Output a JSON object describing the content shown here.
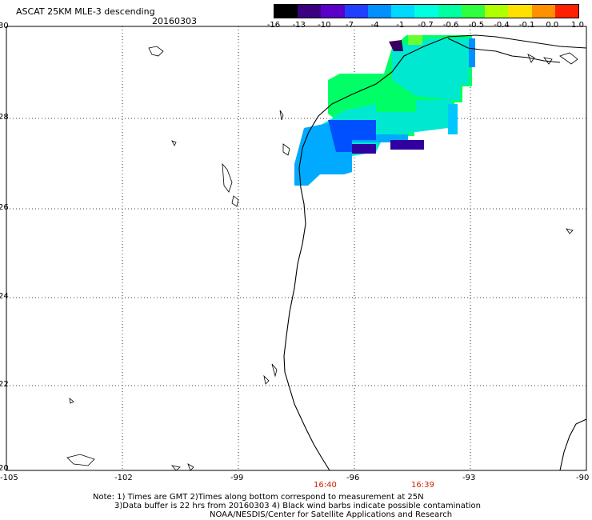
{
  "title": "ASCAT 25KM MLE-3 descending",
  "date": "20160303",
  "colorbar": {
    "labels": [
      "-16",
      "-13",
      "-10",
      "-7",
      "-4",
      "-1",
      "-0.7",
      "-0.6",
      "-0.5",
      "-0.4",
      "-0.1",
      "0.0",
      "1.0"
    ],
    "colors": [
      "#000000",
      "#3a0080",
      "#5a00c8",
      "#2040ff",
      "#0090ff",
      "#00d8ff",
      "#00ffe0",
      "#00ffa0",
      "#30ff40",
      "#b0ff00",
      "#ffe000",
      "#ff9000",
      "#ff2000"
    ]
  },
  "lat_labels": [
    "30",
    "28",
    "26",
    "24",
    "22",
    "20"
  ],
  "lon_labels": [
    "-105",
    "-102",
    "-99",
    "-96",
    "-93",
    "-90"
  ],
  "times": [
    "16:40",
    "16:39"
  ],
  "notes": [
    "Note: 1) Times are GMT 2)Times along bottom correspond to measurement at 25N",
    "3)Data buffer is 22 hrs from 20160303 4) Black wind barbs indicate possible contamination",
    "NOAA/NESDIS/Center for Satellite Applications and Research"
  ]
}
